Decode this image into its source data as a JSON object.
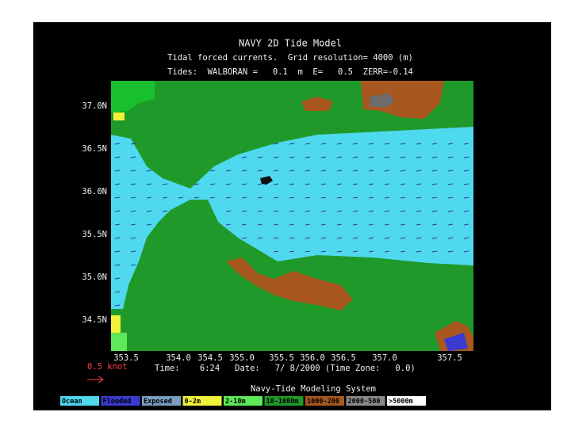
{
  "header": {
    "title": "NAVY 2D Tide Model",
    "subtitle": "Tidal forced currents.  Grid resolution= 4000 (m)",
    "tides": "Tides:  WALBORAN =   0.1  m  E=   0.5  ZERR=-0.14"
  },
  "latitude_labels": [
    "37.0N",
    "36.5N",
    "36.0N",
    "35.5N",
    "35.0N",
    "34.5N"
  ],
  "longitude_labels": [
    "353.5",
    "354.0",
    "354.5",
    "355.0",
    "355.5",
    "356.0",
    "356.5",
    "357.0",
    "357.5"
  ],
  "scale_label": "0.5 knot",
  "time_line": "Time:    6:24   Date:   7/ 8/2000 (Time Zone:   0.0)",
  "footer": "Navy-Tide Modeling System",
  "legend": [
    "Ocean",
    "Flooded",
    "Exposed",
    "0-2m",
    "2-10m",
    "10-1000m",
    "1000-200",
    "2000-500",
    ">5000m"
  ]
}
